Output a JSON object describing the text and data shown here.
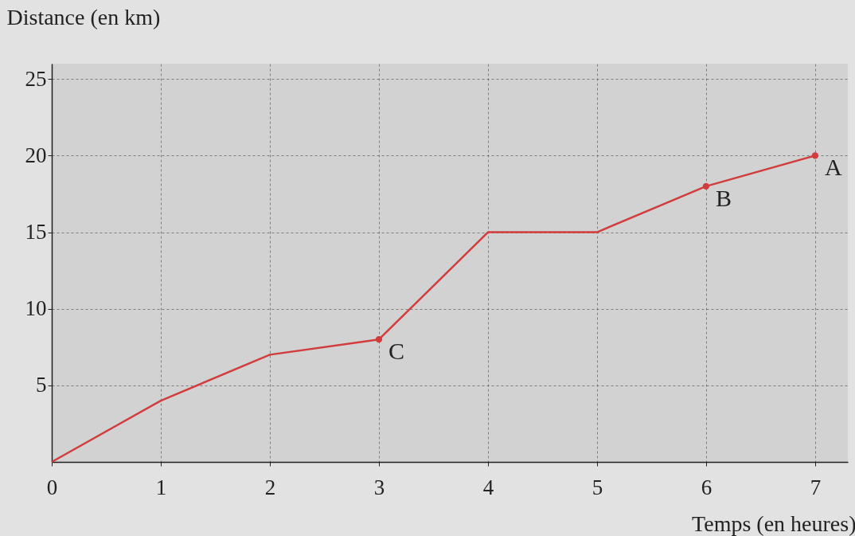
{
  "chart_data": {
    "type": "line",
    "xlabel": "Temps (en heures)",
    "ylabel": "Distance (en km)",
    "x": [
      0,
      1,
      2,
      3,
      4,
      5,
      6,
      7
    ],
    "series": [
      {
        "color": "#d23c3c",
        "values": [
          0,
          4,
          7,
          8,
          15,
          15,
          18,
          20
        ]
      },
      {
        "type": "scatter",
        "color": "#d23c3c",
        "x": [
          3,
          6,
          7
        ],
        "values": [
          8,
          18,
          20
        ]
      }
    ],
    "annotations": [
      {
        "text": "C",
        "x": 3,
        "y": 8
      },
      {
        "text": "B",
        "x": 6,
        "y": 18
      },
      {
        "text": "A",
        "x": 7,
        "y": 20
      }
    ],
    "xlim": [
      0,
      7.3
    ],
    "ylim": [
      0,
      26
    ],
    "xticks": [
      0,
      1,
      2,
      3,
      4,
      5,
      6,
      7
    ],
    "yticks": [
      5,
      10,
      15,
      20,
      25
    ],
    "grid": true
  }
}
